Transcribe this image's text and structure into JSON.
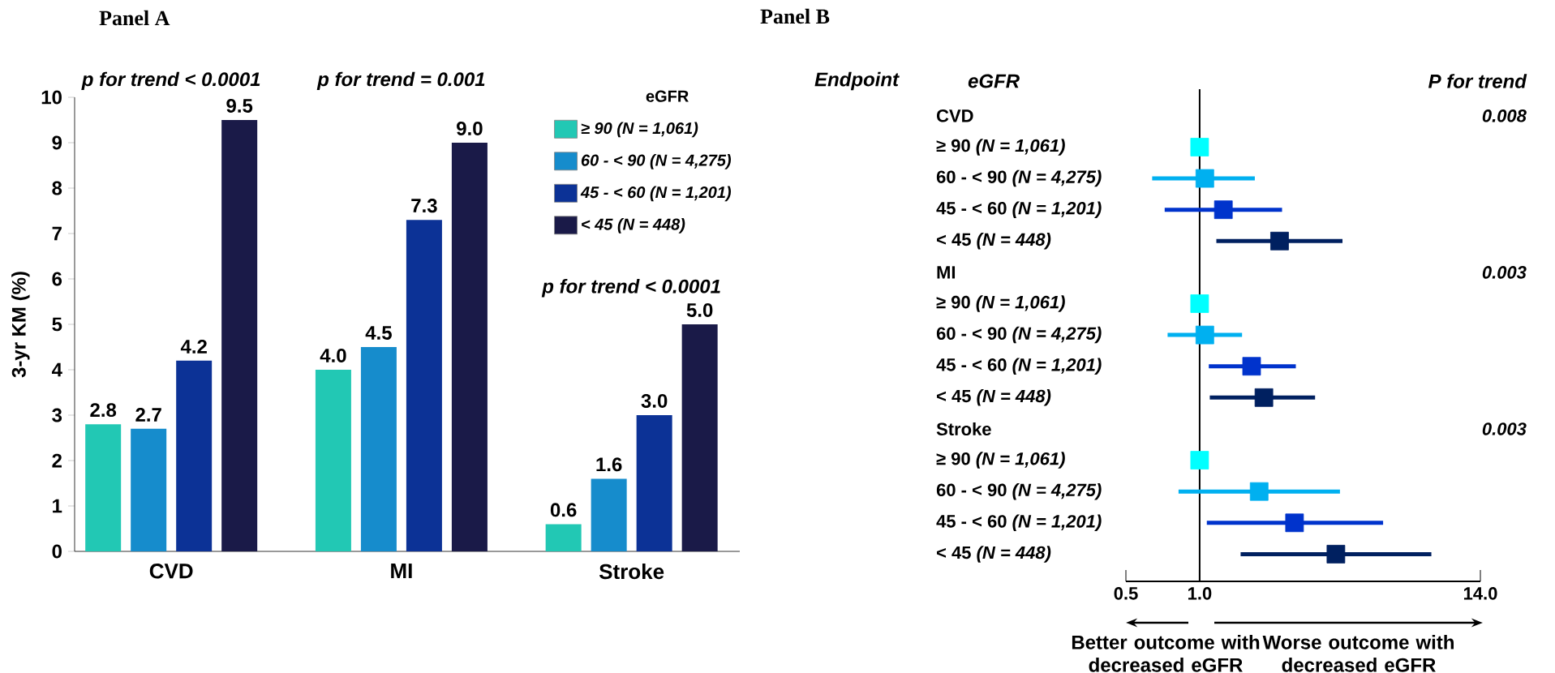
{
  "chart_data": [
    {
      "type": "bar",
      "title": "Panel A",
      "ylabel": "3-yr KM (%)",
      "categories": [
        "CVD",
        "MI",
        "Stroke"
      ],
      "series": [
        {
          "name": "≥ 90 (N = 1,061)",
          "color": "#22c8b4",
          "values": [
            2.8,
            4.0,
            0.6
          ],
          "value_labels": [
            "2.8",
            "4.0",
            "0.6"
          ]
        },
        {
          "name": "60 - < 90 (N = 4,275)",
          "color": "#168ccc",
          "values": [
            2.7,
            4.5,
            1.6
          ],
          "value_labels": [
            "2.7",
            "4.5",
            "1.6"
          ]
        },
        {
          "name": "45 - < 60 (N = 1,201)",
          "color": "#0c3296",
          "values": [
            4.2,
            7.3,
            3.0
          ],
          "value_labels": [
            "4.2",
            "7.3",
            "3.0"
          ]
        },
        {
          "name": "< 45 (N = 448)",
          "color": "#1a1a48",
          "values": [
            9.5,
            9.0,
            5.0
          ],
          "value_labels": [
            "9.5",
            "9.0",
            "5.0"
          ]
        }
      ],
      "ylim": [
        0,
        10
      ],
      "yticks": [
        0,
        1,
        2,
        3,
        4,
        5,
        6,
        7,
        8,
        9,
        10
      ],
      "legend": "top right",
      "legend_title": "eGFR",
      "annotations": [
        "p for trend < 0.0001",
        "p for trend = 0.001",
        "p for trend < 0.0001"
      ]
    },
    {
      "type": "scatter",
      "orientation": "horizontal",
      "title": "Panel B",
      "ylabel": "Endpoint",
      "y2label": "P for trend",
      "categories": [
        "CVD",
        "≥ 90 *(N = 1,061)*",
        "60 - < 90 *(N = 4,275)*",
        "45 - < 60 *(N = 1,201)*",
        "< 45 *(N = 448)*",
        "MI",
        "≥ 90 *(N = 1,061)*",
        "60 - < 90 *(N = 4,275)*",
        "45 - < 60 *(N = 1,201)*",
        "< 45 *(N = 448)*",
        "Stroke",
        "≥ 90 *(N = 1,061)*",
        "60 - < 90 *(N = 4,275)*",
        "45 - < 60 *(N = 1,201)*",
        "< 45 *(N = 448)*"
      ],
      "y2_categories": [
        "0.008",
        null,
        null,
        null,
        null,
        "0.003",
        null,
        null,
        null,
        null,
        "0.003",
        null,
        null,
        null,
        null
      ],
      "series": [
        {
          "color": "#00ffff",
          "values": [
            null,
            1.0,
            null,
            null,
            null,
            null,
            1.0,
            null,
            null,
            null,
            null,
            1.0,
            null,
            null,
            null
          ],
          "errors": [
            null,
            null,
            null,
            null,
            null,
            null,
            null,
            null,
            null,
            null,
            null,
            null,
            null,
            null,
            null
          ]
        },
        {
          "color": "#00b0f0",
          "values": [
            null,
            null,
            1.05,
            null,
            null,
            null,
            null,
            1.05,
            null,
            null,
            null,
            null,
            1.75,
            null,
            null
          ],
          "errors": [
            null,
            null,
            [
              0.64,
              1.68
            ],
            null,
            null,
            null,
            null,
            [
              0.74,
              1.49
            ],
            null,
            null,
            null,
            null,
            [
              0.82,
              3.74
            ],
            null,
            null
          ]
        },
        {
          "color": "#0033cc",
          "values": [
            null,
            null,
            null,
            1.25,
            null,
            null,
            null,
            null,
            1.63,
            null,
            null,
            null,
            null,
            2.44,
            null
          ],
          "errors": [
            null,
            null,
            null,
            [
              0.72,
              2.17
            ],
            null,
            null,
            null,
            null,
            [
              1.09,
              2.47
            ],
            null,
            null,
            null,
            null,
            [
              1.07,
              5.61
            ],
            null
          ]
        },
        {
          "color": "#002060",
          "values": [
            null,
            null,
            null,
            null,
            2.12,
            null,
            null,
            null,
            null,
            1.83,
            null,
            null,
            null,
            null,
            3.6
          ],
          "errors": [
            null,
            null,
            null,
            null,
            [
              1.17,
              3.83
            ],
            null,
            null,
            null,
            null,
            [
              1.1,
              2.96
            ],
            null,
            null,
            null,
            null,
            [
              1.47,
              8.83
            ]
          ]
        }
      ],
      "xlim": [
        0.5,
        14
      ],
      "xticks": [
        {
          "value": 0.5,
          "label": "0.5"
        },
        {
          "value": 1,
          "label": "1.0"
        },
        {
          "value": 14,
          "label": "14.0"
        }
      ],
      "log": "x",
      "marker": "square",
      "ref_lines": [
        {
          "axis": "x",
          "value": 1
        }
      ],
      "annotations": [
        "eGFR",
        "Better outcome with  decreased eGFR",
        "Worse outcome with decreased eGFR"
      ]
    }
  ]
}
